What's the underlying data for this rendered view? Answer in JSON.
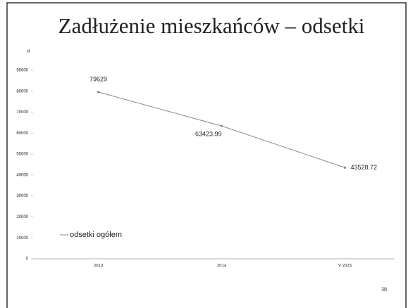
{
  "chart_data": {
    "type": "line",
    "title": "Zadłużenie mieszkańców – odsetki",
    "y_label": "zł",
    "categories": [
      "2013",
      "2014",
      "V 2015"
    ],
    "series": [
      {
        "name": "odsetki ogółem",
        "color": "#8a8a8a",
        "values": [
          79629,
          63423.99,
          43528.72
        ]
      }
    ],
    "ylim": [
      0,
      90000
    ],
    "yticks": [
      0,
      10000,
      20000,
      30000,
      40000,
      50000,
      60000,
      70000,
      80000,
      90000
    ],
    "legend": "lower left"
  },
  "page_number": 38
}
